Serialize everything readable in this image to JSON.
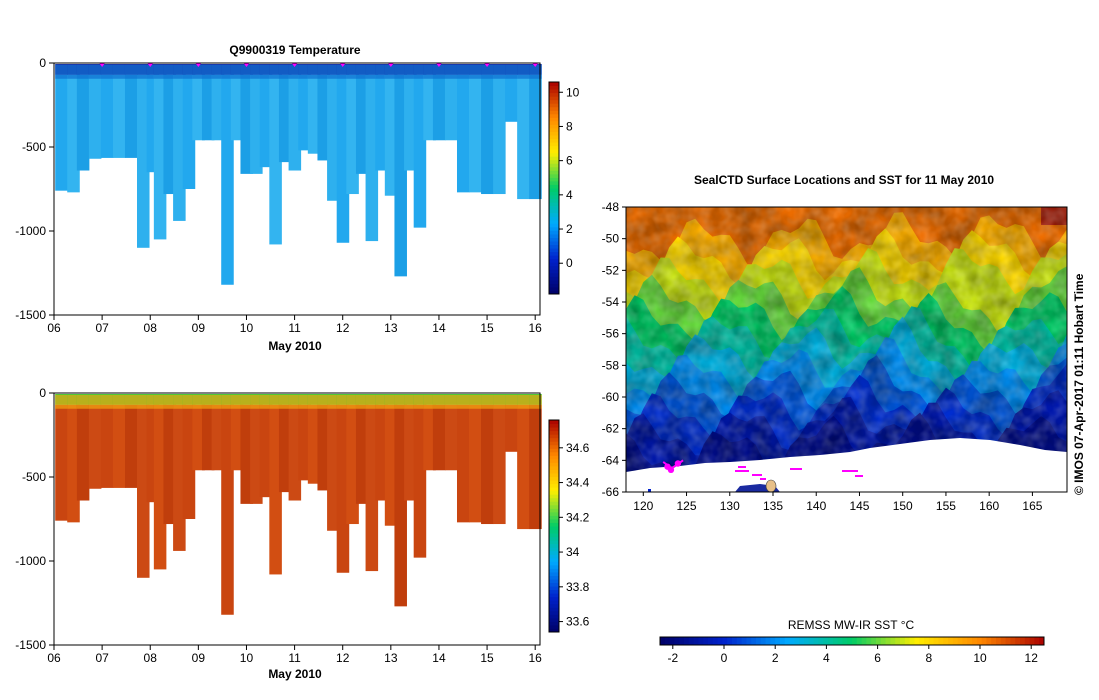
{
  "colors": {
    "background": "#ffffff",
    "axis": "#000000",
    "marker": "#ff00ff",
    "land": "#ffffff",
    "temp_water": "#33bbee",
    "temp_surface": "#1a2aa0",
    "sal_water": "#d04a10",
    "sal_surface": "#22cc33"
  },
  "chart_data": [
    {
      "id": "temperature-section",
      "type": "heatmap",
      "title": "Q9900319  Temperature",
      "xlabel": "May 2010",
      "ylabel": "",
      "x_range": [
        6,
        16.1
      ],
      "x_ticks": [
        "06",
        "07",
        "08",
        "09",
        "10",
        "11",
        "12",
        "13",
        "14",
        "15",
        "16"
      ],
      "ylim": [
        -1500,
        0
      ],
      "y_ticks": [
        "0",
        "-500",
        "-1000",
        "-1500"
      ],
      "profile_times": [
        6.15,
        6.4,
        6.6,
        6.85,
        7.1,
        7.35,
        7.6,
        7.85,
        8.05,
        8.2,
        8.4,
        8.6,
        8.8,
        9.0,
        9.2,
        9.4,
        9.6,
        9.8,
        10.0,
        10.2,
        10.4,
        10.6,
        10.8,
        11.0,
        11.2,
        11.4,
        11.6,
        11.8,
        12.0,
        12.2,
        12.4,
        12.6,
        12.8,
        13.0,
        13.2,
        13.4,
        13.6,
        13.8,
        14.0,
        14.25,
        14.5,
        14.75,
        15.0,
        15.25,
        15.5,
        15.75,
        16.0
      ],
      "profile_max_depths": [
        -760,
        -770,
        -640,
        -570,
        -565,
        -565,
        -565,
        -1100,
        -650,
        -1050,
        -780,
        -940,
        -750,
        -460,
        -460,
        -460,
        -1320,
        -460,
        -660,
        -660,
        -620,
        -1080,
        -590,
        -640,
        -520,
        -540,
        -580,
        -820,
        -1070,
        -780,
        -660,
        -1060,
        -640,
        -790,
        -1270,
        -640,
        -980,
        -460,
        -460,
        -460,
        -770,
        -770,
        -780,
        -780,
        -350,
        -810,
        -810
      ],
      "surface_layer_depth": 70,
      "float_markers": [
        7.0,
        8.0,
        9.0,
        10.0,
        11.0,
        12.0,
        13.0,
        14.0,
        15.0,
        16.0
      ],
      "colorbar": {
        "ticks": [
          "0",
          "2",
          "4",
          "6",
          "8",
          "10"
        ],
        "values": [
          0,
          2,
          4,
          6,
          8,
          10
        ],
        "range": [
          -1.8,
          10.6
        ],
        "stops": [
          "#000066",
          "#0022cc",
          "#00aaff",
          "#00cc66",
          "#ffee00",
          "#ff8800",
          "#aa0000"
        ]
      }
    },
    {
      "id": "salinity-section",
      "type": "heatmap",
      "title": "",
      "xlabel": "May 2010",
      "ylabel": "",
      "x_range": [
        6,
        16.1
      ],
      "x_ticks": [
        "06",
        "07",
        "08",
        "09",
        "10",
        "11",
        "12",
        "13",
        "14",
        "15",
        "16"
      ],
      "ylim": [
        -1500,
        0
      ],
      "y_ticks": [
        "0",
        "-500",
        "-1000",
        "-1500"
      ],
      "surface_layer_depth": 70,
      "colorbar": {
        "ticks": [
          "33.6",
          "33.8",
          "34",
          "34.2",
          "34.4",
          "34.6"
        ],
        "values": [
          33.6,
          33.8,
          34.0,
          34.2,
          34.4,
          34.6
        ],
        "range": [
          33.54,
          34.76
        ],
        "stops": [
          "#000066",
          "#0022cc",
          "#00aaff",
          "#00cc66",
          "#ffee00",
          "#ff8800",
          "#aa0000"
        ]
      }
    },
    {
      "id": "sst-map",
      "type": "heatmap",
      "title": "SealCTD Surface Locations and SST for 11 May 2010",
      "xlabel": "",
      "ylabel": "",
      "xlim": [
        118,
        169
      ],
      "ylim": [
        -66,
        -48
      ],
      "x_ticks": [
        "120",
        "125",
        "130",
        "135",
        "140",
        "145",
        "150",
        "155",
        "160",
        "165"
      ],
      "x_values": [
        120,
        125,
        130,
        135,
        140,
        145,
        150,
        155,
        160,
        165
      ],
      "y_ticks": [
        "-48",
        "-50",
        "-52",
        "-54",
        "-56",
        "-58",
        "-60",
        "-62",
        "-64",
        "-66"
      ],
      "y_values": [
        -48,
        -50,
        -52,
        -54,
        -56,
        -58,
        -60,
        -62,
        -64,
        -66
      ],
      "seal_locations": [
        [
          122.8,
          -64.4
        ],
        [
          123.2,
          -64.6
        ],
        [
          124.0,
          -64.2
        ]
      ],
      "colorbar": {
        "label": "REMSS MW-IR SST °C",
        "ticks": [
          "-2",
          "0",
          "2",
          "4",
          "6",
          "8",
          "10",
          "12"
        ],
        "values": [
          -2,
          0,
          2,
          4,
          6,
          8,
          10,
          12
        ],
        "range": [
          -2.5,
          12.5
        ],
        "stops": [
          "#000066",
          "#0022cc",
          "#00aaff",
          "#00cc66",
          "#ffee00",
          "#ff8800",
          "#aa0000"
        ]
      }
    }
  ],
  "credit": "© IMOS 07-Apr-2017 01:11 Hobart Time"
}
